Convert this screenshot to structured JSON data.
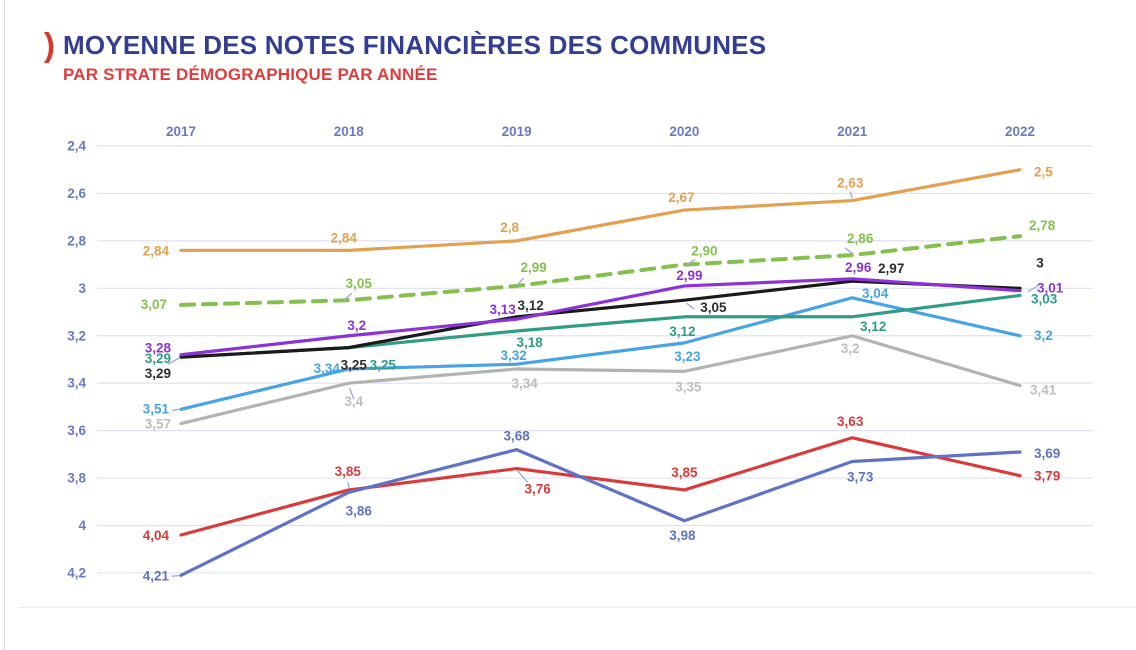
{
  "header": {
    "bracket": ")",
    "title": "MOYENNE DES NOTES FINANCIÈRES DES COMMUNES",
    "subtitle": "PAR STRATE DÉMOGRAPHIQUE PAR ANNÉE",
    "title_color": "#333d92",
    "subtitle_color": "#e23b3b",
    "bracket_color": "#d8372f"
  },
  "chart_data": {
    "type": "line",
    "title": "Moyenne des notes financières des communes par strate démographique par année",
    "x": [
      "2017",
      "2018",
      "2019",
      "2020",
      "2021",
      "2022"
    ],
    "y_axis": {
      "min": 2.4,
      "max": 4.2,
      "step": 0.2,
      "inverted": true,
      "tick_labels": [
        "2,4",
        "2,6",
        "2,8",
        "3",
        "3,2",
        "3,4",
        "3,6",
        "3,8",
        "4",
        "4,2"
      ]
    },
    "grid": true,
    "legend_position": "none",
    "style": {
      "axis_color": "#6a78cb",
      "grid_color": "#dfe0f3",
      "leader_color": "#a3abda",
      "black_label_color": "#2d2d2d",
      "gray_label_color": "#bdbdbd"
    },
    "series": [
      {
        "name": "orange",
        "color": "#e2a050",
        "dash": false,
        "values": [
          2.84,
          2.84,
          2.8,
          2.67,
          2.63,
          2.5
        ],
        "labels": [
          {
            "t": "2,84",
            "dx": -12,
            "dy": 5,
            "a": "end"
          },
          {
            "t": "2,84",
            "dx": -5,
            "dy": -8,
            "a": "middle"
          },
          {
            "t": "2,8",
            "dx": -7,
            "dy": -9,
            "a": "middle"
          },
          {
            "t": "2,67",
            "dx": -3,
            "dy": -8,
            "a": "middle"
          },
          {
            "t": "2,63",
            "dx": -2,
            "dy": -13,
            "a": "middle",
            "leader": [
              -2,
              -9,
              0,
              -2
            ]
          },
          {
            "t": "2,5",
            "dx": 14,
            "dy": 7,
            "a": "start"
          }
        ]
      },
      {
        "name": "vert-pointille",
        "color": "#85c04f",
        "dash": true,
        "values": [
          3.07,
          3.05,
          2.99,
          2.9,
          2.86,
          2.78
        ],
        "labels": [
          {
            "t": "3,07",
            "dx": -14,
            "dy": 4,
            "a": "end"
          },
          {
            "t": "3,05",
            "dx": 10,
            "dy": -12,
            "a": "middle",
            "leader": [
              -5,
              0,
              3,
              -7
            ]
          },
          {
            "t": "2,99",
            "dx": 17,
            "dy": -14,
            "a": "middle",
            "leader": [
              1,
              -1,
              7,
              -8
            ]
          },
          {
            "t": "2,90",
            "dx": 20,
            "dy": -9,
            "a": "middle",
            "leader": [
              2,
              0,
              11,
              -5
            ]
          },
          {
            "t": "2,86",
            "dx": 8,
            "dy": -12,
            "a": "middle",
            "leader": [
              -7,
              -7,
              1,
              -1
            ]
          },
          {
            "t": "2,78",
            "dx": 9,
            "dy": -6,
            "a": "start"
          }
        ]
      },
      {
        "name": "gris",
        "color": "#b3b3b3",
        "dash": false,
        "label_color": "#bdbdbd",
        "values": [
          3.57,
          3.4,
          3.34,
          3.35,
          3.2,
          3.41
        ],
        "labels": [
          {
            "t": "3,57",
            "dx": -10,
            "dy": 5,
            "a": "end"
          },
          {
            "t": "3,4",
            "dx": 5,
            "dy": 23,
            "a": "middle",
            "leader": [
              1,
              5,
              5,
              16
            ]
          },
          {
            "t": "3,34",
            "dx": 8,
            "dy": 19,
            "a": "middle"
          },
          {
            "t": "3,35",
            "dx": 4,
            "dy": 20,
            "a": "middle"
          },
          {
            "t": "3,2",
            "dx": -2,
            "dy": 17,
            "a": "middle"
          },
          {
            "t": "3,41",
            "dx": 10,
            "dy": 9,
            "a": "start"
          }
        ]
      },
      {
        "name": "bleu-clair",
        "color": "#47a3e4",
        "dash": false,
        "values": [
          3.51,
          3.34,
          3.32,
          3.23,
          3.04,
          3.2
        ],
        "labels": [
          {
            "t": "3,51",
            "dx": -12,
            "dy": 4,
            "a": "end",
            "leader": [
              -9,
              1,
              -2,
              0
            ]
          },
          {
            "t": "3,34",
            "dx": -22,
            "dy": 4,
            "a": "middle"
          },
          {
            "t": "3,32",
            "dx": -3,
            "dy": -4,
            "a": "middle"
          },
          {
            "t": "3,23",
            "dx": 3,
            "dy": 18,
            "a": "middle"
          },
          {
            "t": "3,04",
            "dx": 23,
            "dy": 0,
            "a": "middle"
          },
          {
            "t": "3,2",
            "dx": 14,
            "dy": 4,
            "a": "start"
          }
        ]
      },
      {
        "name": "vert-sarcelle",
        "color": "#2f9c83",
        "dash": false,
        "values": [
          3.29,
          3.25,
          3.18,
          3.12,
          3.12,
          3.03
        ],
        "labels": [
          {
            "t": "3,29",
            "dx": -10,
            "dy": 6,
            "a": "end",
            "leader": [
              -13,
              7,
              -2,
              1
            ]
          },
          {
            "t": "3,25",
            "dx": 34,
            "dy": 22,
            "a": "middle"
          },
          {
            "t": "3,18",
            "dx": 13,
            "dy": 16,
            "a": "middle"
          },
          {
            "t": "3,12",
            "dx": -2,
            "dy": 19,
            "a": "middle"
          },
          {
            "t": "3,12",
            "dx": 21,
            "dy": 14,
            "a": "middle"
          },
          {
            "t": "3,03",
            "dx": 11,
            "dy": 8,
            "a": "start"
          }
        ]
      },
      {
        "name": "noir",
        "color": "#1a1a1a",
        "dash": false,
        "label_color": "#2d2d2d",
        "bold_labels": true,
        "values": [
          3.29,
          3.25,
          3.12,
          3.05,
          2.97,
          3.0
        ],
        "labels": [
          {
            "t": "3,29",
            "dx": -10,
            "dy": 21,
            "a": "end",
            "b": 1
          },
          {
            "t": "3,25",
            "dx": 5,
            "dy": 22,
            "a": "middle",
            "b": 1
          },
          {
            "t": "3,12",
            "dx": 14,
            "dy": -7,
            "a": "middle",
            "b": 1
          },
          {
            "t": "3,05",
            "dx": 29,
            "dy": 12,
            "a": "middle",
            "b": 1,
            "leader": [
              2,
              3,
              10,
              9
            ]
          },
          {
            "t": "2,97",
            "dx": 39,
            "dy": -8,
            "a": "middle",
            "b": 1
          },
          {
            "t": "3",
            "dx": 20,
            "dy": -21,
            "a": "middle",
            "b": 1
          }
        ]
      },
      {
        "name": "violet",
        "color": "#8c33d6",
        "dash": false,
        "values": [
          3.28,
          3.2,
          3.13,
          2.99,
          2.96,
          3.01
        ],
        "labels": [
          {
            "t": "3,28",
            "dx": -10,
            "dy": -2,
            "a": "end"
          },
          {
            "t": "3,2",
            "dx": 8,
            "dy": -6,
            "a": "middle"
          },
          {
            "t": "3,13",
            "dx": -14,
            "dy": -5,
            "a": "middle"
          },
          {
            "t": "2,99",
            "dx": 5,
            "dy": -6,
            "a": "middle"
          },
          {
            "t": "2,96",
            "dx": 6,
            "dy": -7,
            "a": "middle"
          },
          {
            "t": "3,01",
            "dx": 17,
            "dy": 2,
            "a": "start",
            "leader": [
              8,
              1,
              18,
              -5
            ]
          }
        ]
      },
      {
        "name": "rouge",
        "color": "#d93b3b",
        "dash": false,
        "values": [
          4.04,
          3.85,
          3.76,
          3.85,
          3.63,
          3.79
        ],
        "labels": [
          {
            "t": "4,04",
            "dx": -12,
            "dy": 5,
            "a": "end"
          },
          {
            "t": "3,85",
            "dx": -1,
            "dy": -14,
            "a": "middle",
            "leader": [
              -1,
              -8,
              0,
              -2
            ]
          },
          {
            "t": "3,76",
            "dx": 21,
            "dy": 25,
            "a": "middle",
            "leader": [
              1,
              2,
              11,
              14
            ]
          },
          {
            "t": "3,85",
            "dx": 0,
            "dy": -13,
            "a": "middle"
          },
          {
            "t": "3,63",
            "dx": -2,
            "dy": -12,
            "a": "middle"
          },
          {
            "t": "3,79",
            "dx": 14,
            "dy": 5,
            "a": "start"
          }
        ]
      },
      {
        "name": "bleu-indigo",
        "color": "#6072c6",
        "dash": false,
        "values": [
          4.21,
          3.86,
          3.68,
          3.98,
          3.73,
          3.69
        ],
        "labels": [
          {
            "t": "4,21",
            "dx": -12,
            "dy": 5,
            "a": "end",
            "leader": [
              -9,
              1,
              -1,
              0
            ]
          },
          {
            "t": "3,86",
            "dx": 10,
            "dy": 23,
            "a": "middle"
          },
          {
            "t": "3,68",
            "dx": 0,
            "dy": -9,
            "a": "middle"
          },
          {
            "t": "3,98",
            "dx": -2,
            "dy": 19,
            "a": "middle"
          },
          {
            "t": "3,73",
            "dx": 8,
            "dy": 20,
            "a": "middle"
          },
          {
            "t": "3,69",
            "dx": 14,
            "dy": 6,
            "a": "start"
          }
        ]
      }
    ]
  }
}
